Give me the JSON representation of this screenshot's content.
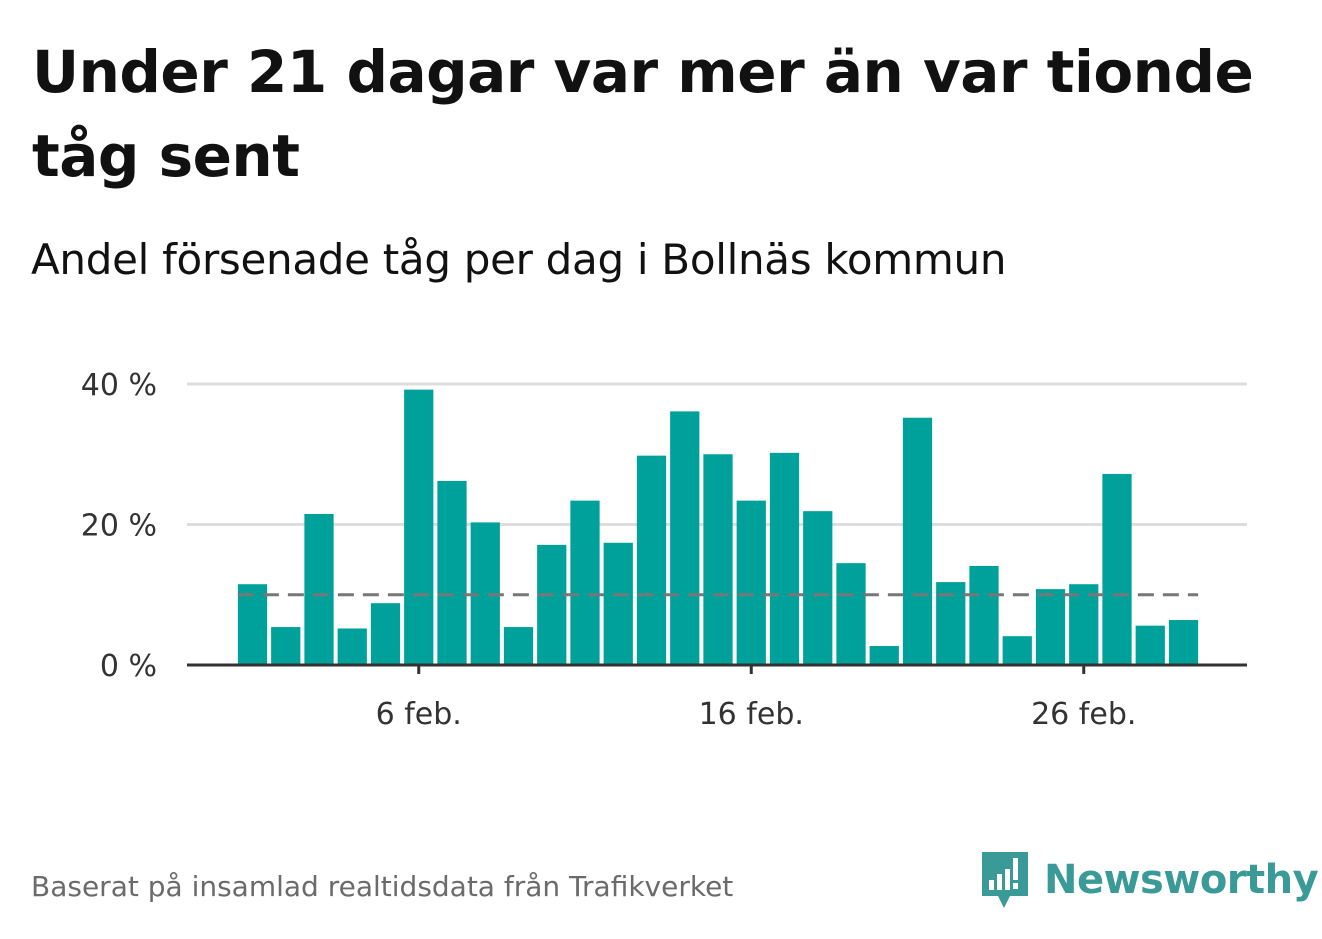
{
  "title": "Under 21 dagar var mer än var tionde tåg sent",
  "subtitle": "Andel försenade tåg per dag i Bollnäs kommun",
  "footer": "Baserat på insamlad realtidsdata från Trafikverket",
  "brand": {
    "name": "Newsworthy",
    "icon": "newsworthy-logo-icon",
    "color": "#3a9a98"
  },
  "colors": {
    "bar": "#00a19a",
    "grid": "#dddddd",
    "reference": "#777777",
    "axis": "#333333"
  },
  "chart_data": {
    "type": "bar",
    "title": "",
    "xlabel": "",
    "ylabel": "",
    "x": [
      "2024-02-01",
      "2024-02-02",
      "2024-02-03",
      "2024-02-04",
      "2024-02-05",
      "2024-02-06",
      "2024-02-07",
      "2024-02-08",
      "2024-02-09",
      "2024-02-10",
      "2024-02-11",
      "2024-02-12",
      "2024-02-13",
      "2024-02-14",
      "2024-02-15",
      "2024-02-16",
      "2024-02-17",
      "2024-02-18",
      "2024-02-19",
      "2024-02-20",
      "2024-02-21",
      "2024-02-22",
      "2024-02-23",
      "2024-02-24",
      "2024-02-25",
      "2024-02-26",
      "2024-02-27",
      "2024-02-28",
      "2024-02-29"
    ],
    "values": [
      11.5,
      5.4,
      21.5,
      5.2,
      8.8,
      39.2,
      26.2,
      20.3,
      5.4,
      17.1,
      23.4,
      17.4,
      29.8,
      36.1,
      30.0,
      23.4,
      30.2,
      21.9,
      14.5,
      2.7,
      35.2,
      11.8,
      14.1,
      4.1,
      10.8,
      11.5,
      27.2,
      5.6,
      6.4
    ],
    "reference_line": 10,
    "ylim": [
      0,
      40
    ],
    "yticks": [
      {
        "value": 0,
        "label": "0 %"
      },
      {
        "value": 20,
        "label": "20 %"
      },
      {
        "value": 40,
        "label": "40 %"
      }
    ],
    "xticks": [
      {
        "index": 5,
        "label": "6 feb."
      },
      {
        "index": 15,
        "label": "16 feb."
      },
      {
        "index": 25,
        "label": "26 feb."
      }
    ],
    "grid": true,
    "legend": "none"
  }
}
